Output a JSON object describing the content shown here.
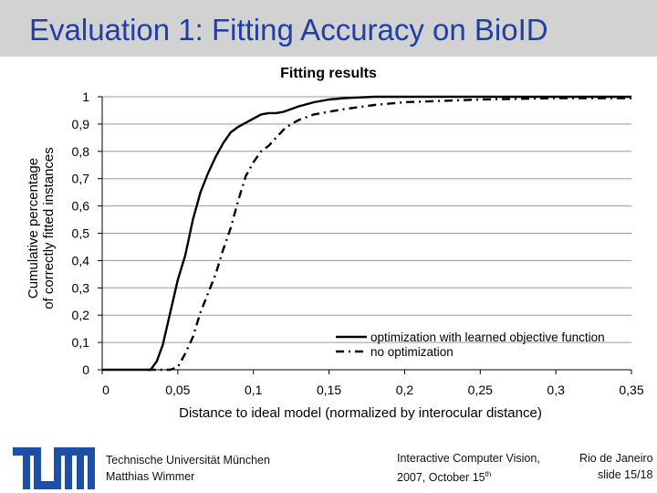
{
  "slide": {
    "title": "Evaluation 1: Fitting Accuracy on BioID"
  },
  "footer": {
    "institution": "Technische Universität München",
    "author": "Matthias Wimmer",
    "event": "Interactive Computer Vision,",
    "date_prefix": "2007, October 15",
    "date_suffix": "th",
    "location": "Rio de Janeiro",
    "slide_label": "slide 15/18",
    "logo_color": "#1e4fa8"
  },
  "chart_data": {
    "type": "line",
    "title": "Fitting results",
    "xlabel": "Distance to ideal model (normalized by interocular distance)",
    "ylabel_line1": "Cumulative percentage",
    "ylabel_line2": "of correctly fitted instances",
    "xlim": [
      0,
      0.35
    ],
    "ylim": [
      0,
      1
    ],
    "x_ticks": [
      "0",
      "0,05",
      "0,1",
      "0,15",
      "0,2",
      "0,25",
      "0,3",
      "0,35"
    ],
    "y_ticks": [
      "0",
      "0,1",
      "0,2",
      "0,3",
      "0,4",
      "0,5",
      "0,6",
      "0,7",
      "0,8",
      "0,9",
      "1"
    ],
    "grid": true,
    "legend_position": "bottom-right",
    "series": [
      {
        "name": "optimization with learned objective function",
        "style": "solid",
        "x": [
          0,
          0.032,
          0.036,
          0.04,
          0.045,
          0.05,
          0.055,
          0.06,
          0.065,
          0.07,
          0.075,
          0.08,
          0.085,
          0.09,
          0.095,
          0.1,
          0.105,
          0.11,
          0.115,
          0.12,
          0.125,
          0.13,
          0.14,
          0.15,
          0.16,
          0.18,
          0.2,
          0.25,
          0.3,
          0.35
        ],
        "y": [
          0,
          0,
          0.03,
          0.09,
          0.21,
          0.33,
          0.42,
          0.55,
          0.65,
          0.72,
          0.78,
          0.83,
          0.87,
          0.89,
          0.905,
          0.92,
          0.935,
          0.94,
          0.94,
          0.945,
          0.955,
          0.965,
          0.98,
          0.99,
          0.995,
          1.0,
          1.0,
          1.0,
          1.0,
          1.0
        ]
      },
      {
        "name": "no optimization",
        "style": "dashed",
        "x": [
          0.03,
          0.045,
          0.05,
          0.055,
          0.06,
          0.065,
          0.07,
          0.075,
          0.08,
          0.085,
          0.09,
          0.095,
          0.1,
          0.105,
          0.11,
          0.115,
          0.12,
          0.125,
          0.13,
          0.14,
          0.15,
          0.16,
          0.18,
          0.2,
          0.25,
          0.3,
          0.35
        ],
        "y": [
          0,
          0.0,
          0.01,
          0.06,
          0.12,
          0.21,
          0.28,
          0.35,
          0.44,
          0.52,
          0.62,
          0.71,
          0.76,
          0.8,
          0.82,
          0.85,
          0.88,
          0.9,
          0.915,
          0.935,
          0.945,
          0.955,
          0.97,
          0.98,
          0.99,
          0.995,
          0.995
        ]
      }
    ]
  }
}
